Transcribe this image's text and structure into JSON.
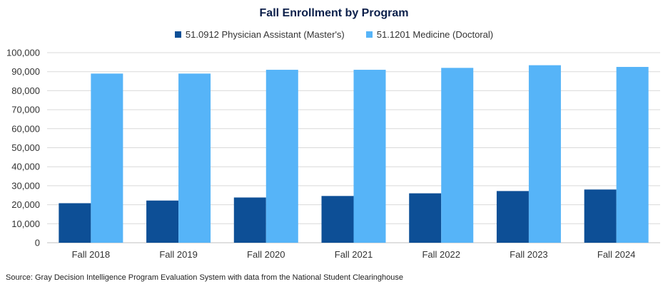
{
  "chart_data": {
    "type": "bar",
    "title": "Fall Enrollment by Program",
    "categories": [
      "Fall 2018",
      "Fall 2019",
      "Fall 2020",
      "Fall 2021",
      "Fall 2022",
      "Fall 2023",
      "Fall 2024"
    ],
    "series": [
      {
        "name": "51.0912 Physician Assistant (Master's)",
        "color": "#0d4f96",
        "values": [
          20800,
          22200,
          23800,
          24600,
          26000,
          27200,
          28000
        ]
      },
      {
        "name": "51.1201 Medicine (Doctoral)",
        "color": "#56b4f8",
        "values": [
          89000,
          89000,
          91000,
          91000,
          92000,
          93400,
          92500
        ]
      }
    ],
    "ylim": [
      0,
      100000
    ],
    "yticks": [
      "0",
      "10,000",
      "20,000",
      "30,000",
      "40,000",
      "50,000",
      "60,000",
      "70,000",
      "80,000",
      "90,000",
      "100,000"
    ],
    "grid": true,
    "legend_position": "top-center",
    "source": "Source: Gray Decision Intelligence Program Evaluation System with data from the National Student Clearinghouse"
  }
}
